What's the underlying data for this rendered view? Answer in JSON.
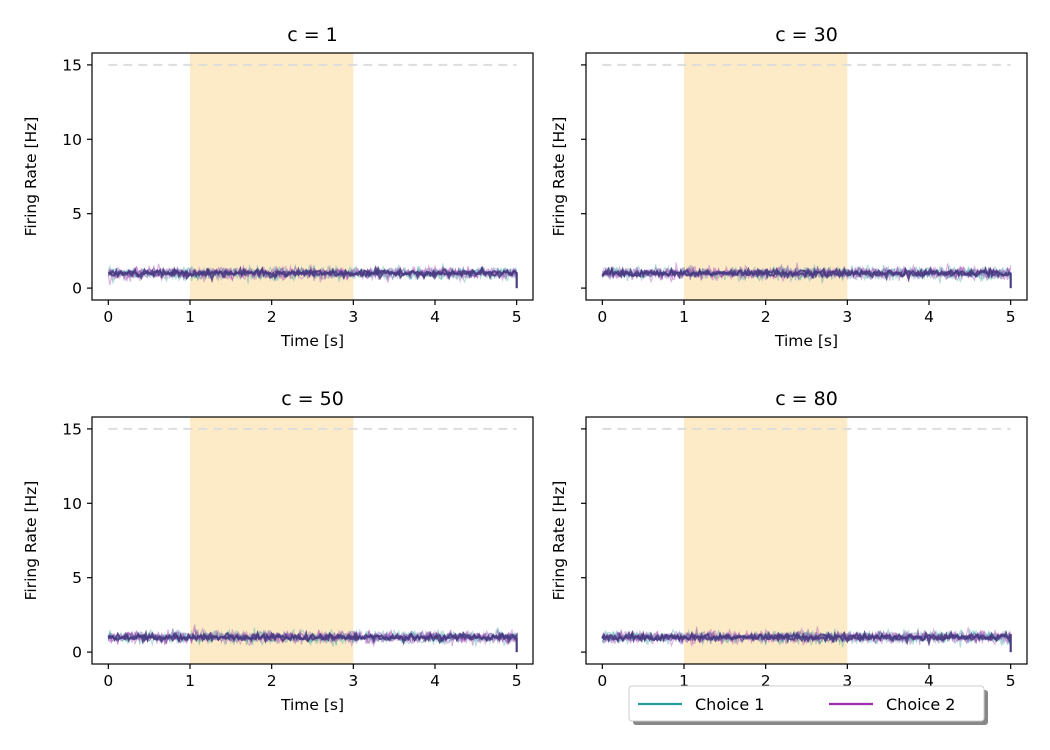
{
  "chart_data": [
    {
      "type": "line",
      "title": "c = 1",
      "xlabel": "Time [s]",
      "ylabel": "Firing Rate [Hz]",
      "xlim": [
        -0.2,
        5.2
      ],
      "ylim": [
        -0.8,
        15.8
      ],
      "xticks": [
        "0",
        "1",
        "2",
        "3",
        "4",
        "5"
      ],
      "yticks": [
        "0",
        "5",
        "10",
        "15"
      ],
      "stimulus_window": [
        1,
        3
      ],
      "threshold": 15,
      "series": [
        {
          "name": "Choice 1",
          "x": [
            0,
            5
          ],
          "mean_rate": 1.0,
          "noise": 0.25
        },
        {
          "name": "Choice 2",
          "x": [
            0,
            5
          ],
          "mean_rate": 1.0,
          "noise": 0.25
        }
      ]
    },
    {
      "type": "line",
      "title": "c = 30",
      "xlabel": "Time [s]",
      "ylabel": "Firing Rate [Hz]",
      "xlim": [
        -0.2,
        5.2
      ],
      "ylim": [
        -0.8,
        15.8
      ],
      "xticks": [
        "0",
        "1",
        "2",
        "3",
        "4",
        "5"
      ],
      "yticks": [
        "",
        "",
        "",
        ""
      ],
      "stimulus_window": [
        1,
        3
      ],
      "threshold": 15,
      "series": [
        {
          "name": "Choice 1",
          "x": [
            0,
            5
          ],
          "mean_rate": 1.0,
          "noise": 0.25
        },
        {
          "name": "Choice 2",
          "x": [
            0,
            5
          ],
          "mean_rate": 1.0,
          "noise": 0.25
        }
      ]
    },
    {
      "type": "line",
      "title": "c = 50",
      "xlabel": "Time [s]",
      "ylabel": "Firing Rate [Hz]",
      "xlim": [
        -0.2,
        5.2
      ],
      "ylim": [
        -0.8,
        15.8
      ],
      "xticks": [
        "0",
        "1",
        "2",
        "3",
        "4",
        "5"
      ],
      "yticks": [
        "0",
        "5",
        "10",
        "15"
      ],
      "stimulus_window": [
        1,
        3
      ],
      "threshold": 15,
      "series": [
        {
          "name": "Choice 1",
          "x": [
            0,
            5
          ],
          "mean_rate": 1.0,
          "noise": 0.25
        },
        {
          "name": "Choice 2",
          "x": [
            0,
            5
          ],
          "mean_rate": 1.0,
          "noise": 0.25
        }
      ]
    },
    {
      "type": "line",
      "title": "c = 80",
      "xlabel": "Time [s]",
      "ylabel": "Firing Rate [Hz]",
      "xlim": [
        -0.2,
        5.2
      ],
      "ylim": [
        -0.8,
        15.8
      ],
      "xticks": [
        "0",
        "1",
        "2",
        "3",
        "4",
        "5"
      ],
      "yticks": [
        "",
        "",
        "",
        ""
      ],
      "stimulus_window": [
        1,
        3
      ],
      "threshold": 15,
      "series": [
        {
          "name": "Choice 1",
          "x": [
            0,
            5
          ],
          "mean_rate": 1.0,
          "noise": 0.25
        },
        {
          "name": "Choice 2",
          "x": [
            0,
            5
          ],
          "mean_rate": 1.0,
          "noise": 0.25
        }
      ]
    }
  ],
  "legend": {
    "placement": "lower-center",
    "entries": [
      {
        "label": "Choice 1",
        "color": "#2a9d9a"
      },
      {
        "label": "Choice 2",
        "color": "#9b2fae"
      }
    ]
  },
  "colors": {
    "choice1": "#2a9d9a",
    "choice2": "#9b2fae",
    "mean_trace": "#463a80",
    "stimulus_shade": "#fdebc8",
    "threshold_line": "#dddddd"
  }
}
